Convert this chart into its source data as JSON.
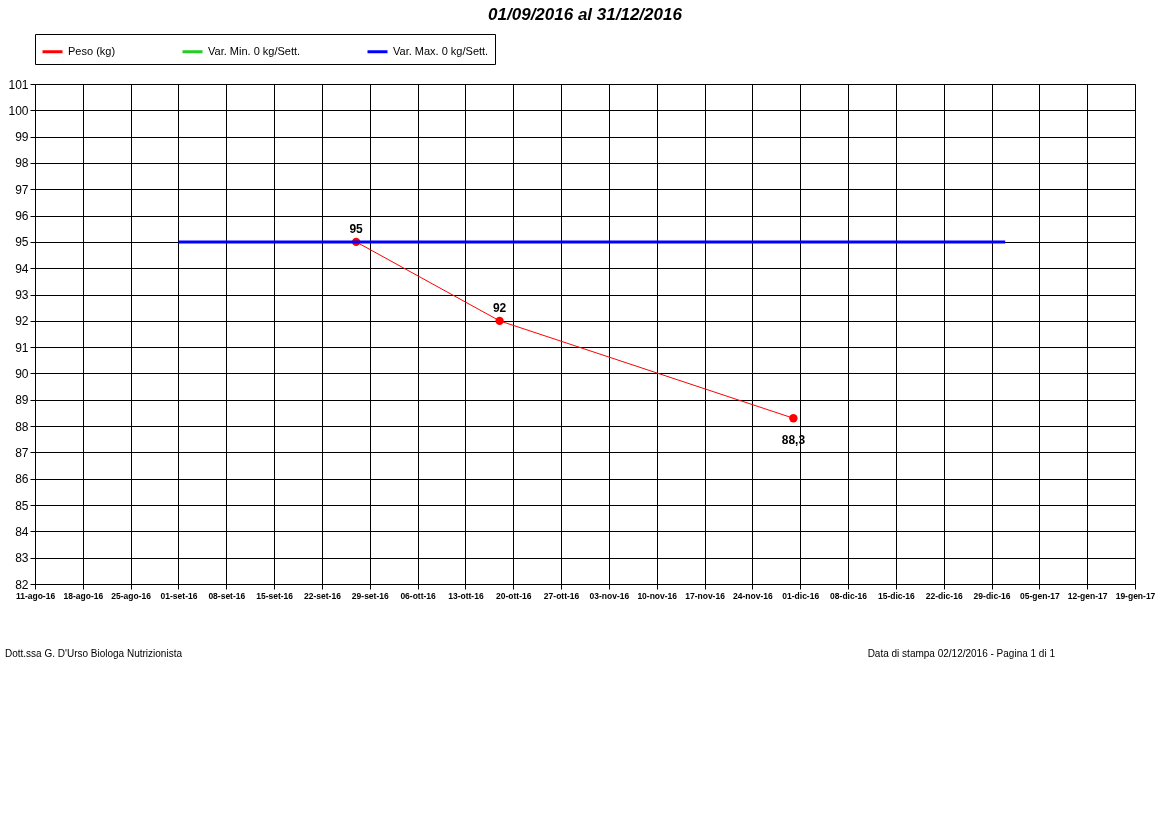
{
  "chart_data": {
    "type": "line",
    "title": "01/09/2016 al 31/12/2016",
    "series": [
      {
        "name": "Peso (kg)",
        "color": "#ff0000",
        "x": [
          "2016-09-27",
          "2016-10-18",
          "2016-11-30"
        ],
        "values": [
          95,
          92,
          88.3
        ],
        "value_labels": [
          "95",
          "92",
          "88,3"
        ],
        "marker": "circle"
      },
      {
        "name": "Var. Min. 0 kg/Sett.",
        "color": "#22cc22",
        "marker": "none"
      },
      {
        "name": "Var. Max. 0 kg/Sett.",
        "color": "#0000ff",
        "x": [
          "2016-09-01",
          "2016-12-31"
        ],
        "values": [
          95,
          95
        ],
        "marker": "none"
      }
    ],
    "xlim": [
      "2016-08-11",
      "2017-01-19"
    ],
    "xticks": [
      {
        "value": "2016-08-11",
        "label": "11-ago-16"
      },
      {
        "value": "2016-08-18",
        "label": "18-ago-16"
      },
      {
        "value": "2016-08-25",
        "label": "25-ago-16"
      },
      {
        "value": "2016-09-01",
        "label": "01-set-16"
      },
      {
        "value": "2016-09-08",
        "label": "08-set-16"
      },
      {
        "value": "2016-09-15",
        "label": "15-set-16"
      },
      {
        "value": "2016-09-22",
        "label": "22-set-16"
      },
      {
        "value": "2016-09-29",
        "label": "29-set-16"
      },
      {
        "value": "2016-10-06",
        "label": "06-ott-16"
      },
      {
        "value": "2016-10-13",
        "label": "13-ott-16"
      },
      {
        "value": "2016-10-20",
        "label": "20-ott-16"
      },
      {
        "value": "2016-10-27",
        "label": "27-ott-16"
      },
      {
        "value": "2016-11-03",
        "label": "03-nov-16"
      },
      {
        "value": "2016-11-10",
        "label": "10-nov-16"
      },
      {
        "value": "2016-11-17",
        "label": "17-nov-16"
      },
      {
        "value": "2016-11-24",
        "label": "24-nov-16"
      },
      {
        "value": "2016-12-01",
        "label": "01-dic-16"
      },
      {
        "value": "2016-12-08",
        "label": "08-dic-16"
      },
      {
        "value": "2016-12-15",
        "label": "15-dic-16"
      },
      {
        "value": "2016-12-22",
        "label": "22-dic-16"
      },
      {
        "value": "2016-12-29",
        "label": "29-dic-16"
      },
      {
        "value": "2017-01-05",
        "label": "05-gen-17"
      },
      {
        "value": "2017-01-12",
        "label": "12-gen-17"
      },
      {
        "value": "2017-01-19",
        "label": "19-gen-17"
      }
    ],
    "ylim": [
      82,
      101
    ],
    "yticks": [
      82,
      83,
      84,
      85,
      86,
      87,
      88,
      89,
      90,
      91,
      92,
      93,
      94,
      95,
      96,
      97,
      98,
      99,
      100,
      101
    ],
    "grid": true,
    "legend": "top left",
    "line_style": "solid",
    "annotations": [
      "Dott.ssa G. D'Urso Biologa Nutrizionista",
      "Data di stampa 02/12/2016  - Pagina 1 di 1"
    ]
  }
}
